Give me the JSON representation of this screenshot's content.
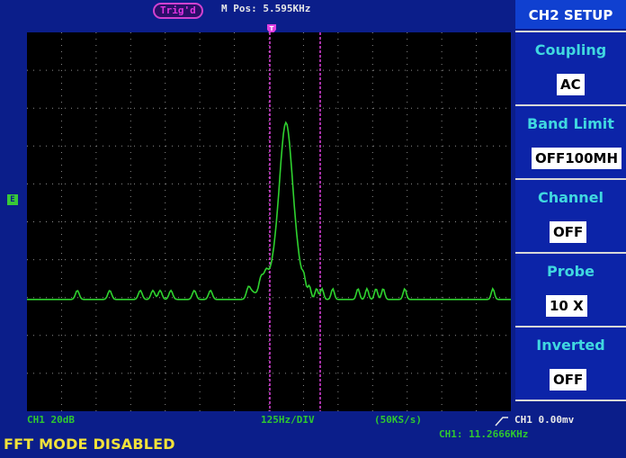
{
  "header": {
    "trigger_badge": "Trig'd",
    "m_pos": "M Pos: 5.595KHz"
  },
  "status": {
    "ch1_scale": "CH1 20dB",
    "freq_div": "125Hz/DIV",
    "sample_rate": "(50KS/s)",
    "trigger_level": "CH1 0.00mv",
    "frequency": "CH1: 11.2666KHz"
  },
  "message": "FFT MODE DISABLED",
  "side_panel": {
    "title": "CH2 SETUP",
    "items": [
      {
        "label": "Coupling",
        "value": "AC"
      },
      {
        "label": "Band Limit",
        "value": "OFF100MH"
      },
      {
        "label": "Channel",
        "value": "OFF"
      },
      {
        "label": "Probe",
        "value": "10 X"
      },
      {
        "label": "Inverted",
        "value": "OFF"
      }
    ]
  },
  "colors": {
    "waveform": "#2fd22f",
    "cursor": "#e040e0",
    "grid": "#8c8c8c",
    "background": "#0b1e8a"
  },
  "chart_data": {
    "type": "line",
    "x_divisions": 14,
    "y_divisions": 10,
    "series": [
      {
        "x": [
          0.0,
          0.1,
          0.2,
          0.3,
          0.4,
          0.5,
          0.6,
          0.7,
          0.8,
          0.9,
          1.0,
          1.1,
          1.2,
          1.3,
          1.4,
          1.5,
          1.6,
          1.7,
          1.8,
          1.9,
          2.0,
          2.1,
          2.2,
          2.3,
          2.4,
          2.5,
          2.6,
          2.7,
          2.8,
          2.9,
          3.0,
          3.1,
          3.2,
          3.3,
          3.4,
          3.5,
          3.6,
          3.7,
          3.8,
          3.9,
          4.0,
          4.1,
          4.2,
          4.3,
          4.4,
          4.5,
          4.6,
          4.7,
          4.8,
          4.9,
          5.0,
          5.1,
          5.2,
          5.3,
          5.4,
          5.5,
          5.6,
          5.7,
          5.8,
          5.9,
          6.0,
          6.1,
          6.2,
          6.3,
          6.4,
          6.5,
          6.6,
          6.7,
          6.8,
          6.9,
          7.0,
          7.1,
          7.2,
          7.3,
          7.4,
          7.5,
          7.6,
          7.7,
          7.8,
          7.9,
          8.0,
          8.1,
          8.2,
          8.3,
          8.4,
          8.5,
          8.6,
          8.7,
          8.8,
          8.9,
          9.0,
          9.1,
          9.2,
          9.3,
          9.4,
          9.5,
          9.6,
          9.7,
          9.8,
          9.9,
          10.0,
          10.1,
          10.2,
          10.3,
          10.4,
          10.5,
          10.6,
          10.7,
          10.8,
          10.9,
          11.0,
          11.5,
          12.0,
          12.5,
          13.0,
          13.5,
          14.0
        ],
        "y": [
          -1.7,
          -1.7,
          -1.7,
          -1.6,
          -1.7,
          -1.7,
          -1.7,
          -1.7,
          -1.7,
          -1.7,
          -1.7,
          -1.7,
          -1.7,
          -1.7,
          -1.7,
          -1.7,
          -1.7,
          -1.7,
          -1.7,
          -1.7,
          -1.7,
          -1.7,
          -1.7,
          -1.7,
          -1.7,
          -1.7,
          -1.7,
          -1.7,
          -1.7,
          -1.7,
          -1.7,
          -1.7,
          -1.7,
          -1.7,
          -1.7,
          -1.7,
          -1.7,
          -1.7,
          -1.7,
          -1.7,
          -1.7,
          -1.7,
          -1.7,
          -1.7,
          -1.7,
          -1.7,
          -1.7,
          -1.7,
          -1.7,
          -1.7,
          -1.7,
          -1.7,
          -1.7,
          -1.7,
          -1.7,
          -1.7,
          -1.7,
          -1.7,
          -1.7,
          -1.7,
          -1.7,
          -1.7,
          -1.7,
          -1.7,
          -1.7,
          -1.7,
          -1.7,
          -1.7,
          -1.7,
          -1.7,
          -1.7,
          -1.7,
          -1.7,
          -1.7,
          -1.7,
          -1.7,
          -1.7,
          -1.7,
          -1.7,
          -1.7,
          -1.7,
          -1.7,
          -1.7,
          -1.7,
          -1.7,
          -1.7,
          -1.7,
          -1.7,
          -1.7,
          -1.7,
          -1.7,
          -1.7,
          -1.7,
          -1.7,
          -1.7,
          -1.7,
          -1.7,
          -1.7,
          -1.7,
          -1.7,
          -1.7,
          -1.7,
          -1.7,
          -1.7,
          -1.7,
          -1.7,
          -1.7,
          -1.7,
          -1.7,
          -1.7,
          -1.7,
          -1.7,
          -1.7,
          -1.7,
          -1.7,
          -1.7,
          -1.7
        ]
      }
    ]
  }
}
